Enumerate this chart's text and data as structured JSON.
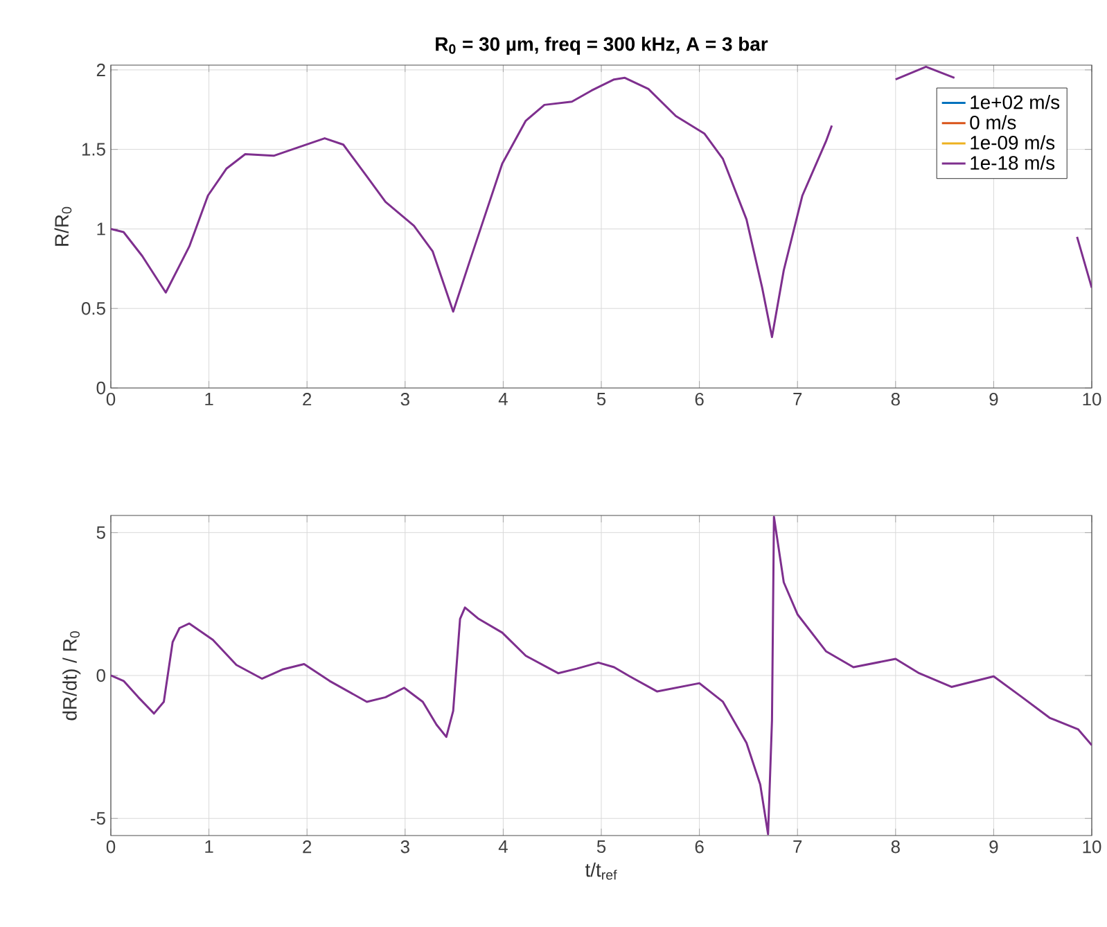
{
  "chart_data": [
    {
      "type": "line",
      "title": "R$_{0}$ = 30 µm, freq = 300 kHz, A = 3 bar",
      "ylabel": "R/R$_{0}$",
      "xlim": [
        0,
        10
      ],
      "ylim": [
        0,
        2.03
      ],
      "xticks": [
        0,
        1,
        2,
        3,
        4,
        5,
        6,
        7,
        8,
        9,
        10
      ],
      "yticks": [
        0,
        0.5,
        1,
        1.5,
        2
      ],
      "grid": true,
      "legend": "top right",
      "x": [
        0,
        0.13,
        0.32,
        0.56,
        0.8,
        0.99,
        1.18,
        1.37,
        1.66,
        1.85,
        2.18,
        2.37,
        2.61,
        2.8,
        3.09,
        3.28,
        3.49,
        3.66,
        3.99,
        4.23,
        4.42,
        4.7,
        4.9,
        5.13,
        5.24,
        5.48,
        5.76,
        6.05,
        6.24,
        6.48,
        6.64,
        6.74,
        6.86,
        7.05,
        7.29,
        7.35,
        7.7,
        8.0,
        8.31,
        8.6,
        9.2,
        9.85,
        10
      ],
      "series": [
        {
          "name": "1e+02 m/s",
          "color": "#0072bd",
          "values": [
            null,
            null,
            null,
            null,
            null,
            null,
            null,
            null,
            null,
            null,
            null,
            null,
            null,
            null,
            null,
            null,
            null,
            null,
            null,
            null,
            null,
            null,
            null,
            null,
            null,
            null,
            null,
            null,
            null,
            null,
            null,
            null,
            null,
            null,
            null,
            null,
            null,
            null,
            null,
            null,
            null,
            null,
            null
          ]
        },
        {
          "name": "0 m/s",
          "color": "#d95319",
          "values": [
            null,
            null,
            null,
            null,
            null,
            null,
            null,
            null,
            null,
            null,
            null,
            null,
            null,
            null,
            null,
            null,
            null,
            null,
            null,
            null,
            null,
            null,
            null,
            null,
            null,
            null,
            null,
            null,
            null,
            null,
            null,
            null,
            null,
            null,
            null,
            null,
            null,
            null,
            null,
            null,
            null,
            null,
            null
          ]
        },
        {
          "name": "1e-09 m/s",
          "color": "#edb120",
          "values": [
            null,
            null,
            null,
            null,
            null,
            null,
            null,
            null,
            null,
            null,
            null,
            null,
            null,
            null,
            null,
            null,
            null,
            null,
            null,
            null,
            null,
            null,
            null,
            null,
            null,
            null,
            null,
            null,
            null,
            null,
            null,
            null,
            null,
            null,
            null,
            null,
            null,
            null,
            null,
            null,
            null,
            null,
            null
          ]
        },
        {
          "name": "1e-18 m/s",
          "color": "#7e2f8e",
          "values": [
            1.0,
            0.98,
            0.83,
            0.6,
            0.89,
            1.21,
            1.38,
            1.47,
            1.46,
            1.5,
            1.57,
            1.53,
            1.33,
            1.17,
            1.02,
            0.86,
            0.48,
            0.8,
            1.41,
            1.68,
            1.78,
            1.8,
            1.87,
            1.94,
            1.95,
            1.88,
            1.71,
            1.6,
            1.44,
            1.06,
            0.63,
            0.32,
            0.74,
            1.21,
            1.55,
            1.65,
            null,
            1.94,
            2.02,
            1.95,
            null,
            0.95,
            0.63
          ]
        }
      ]
    },
    {
      "type": "line",
      "xlabel": "t/t$_{ref}$",
      "ylabel": "dR/dt) / R$_{0}$",
      "xlim": [
        0,
        10
      ],
      "ylim": [
        -5.6,
        5.6
      ],
      "xticks": [
        0,
        1,
        2,
        3,
        4,
        5,
        6,
        7,
        8,
        9,
        10
      ],
      "yticks": [
        -5,
        0,
        5
      ],
      "grid": true,
      "x": [
        0,
        0.13,
        0.28,
        0.44,
        0.54,
        0.63,
        0.7,
        0.8,
        1.04,
        1.28,
        1.54,
        1.75,
        1.97,
        2.23,
        2.61,
        2.8,
        2.99,
        3.18,
        3.32,
        3.42,
        3.49,
        3.56,
        3.61,
        3.75,
        3.99,
        4.23,
        4.56,
        4.75,
        4.97,
        5.13,
        5.29,
        5.57,
        6.0,
        6.24,
        6.48,
        6.62,
        6.7,
        6.74,
        6.76,
        6.86,
        7.0,
        7.29,
        7.57,
        8.0,
        8.24,
        8.57,
        9.0,
        9.29,
        9.57,
        9.86,
        10
      ],
      "series": [
        {
          "color": "#7e2f8e",
          "values": [
            0,
            -0.19,
            -0.76,
            -1.33,
            -0.92,
            1.17,
            1.66,
            1.82,
            1.25,
            0.37,
            -0.11,
            0.21,
            0.4,
            -0.19,
            -0.92,
            -0.76,
            -0.43,
            -0.92,
            -1.72,
            -2.15,
            -1.24,
            1.98,
            2.38,
            1.98,
            1.5,
            0.69,
            0.08,
            0.24,
            0.45,
            0.29,
            -0.03,
            -0.56,
            -0.27,
            -0.92,
            -2.36,
            -3.81,
            -5.55,
            -1.56,
            5.55,
            3.26,
            2.14,
            0.85,
            0.29,
            0.58,
            0.08,
            -0.4,
            -0.03,
            -0.76,
            -1.48,
            -1.88,
            -2.44
          ]
        }
      ]
    }
  ]
}
